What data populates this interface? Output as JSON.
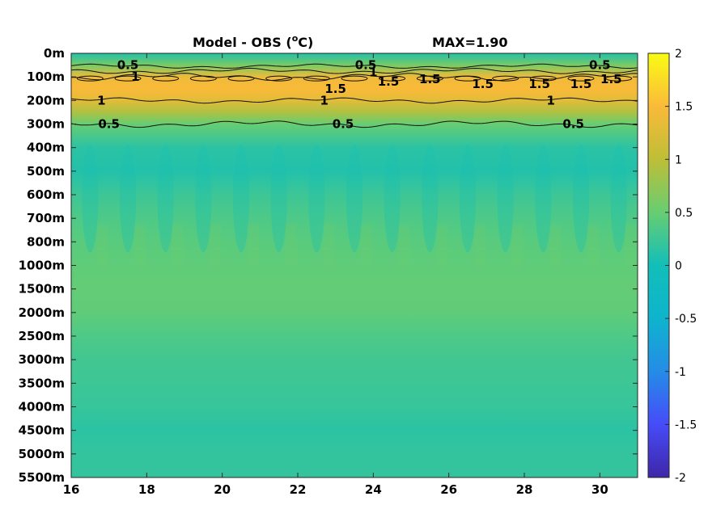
{
  "chart_data": {
    "type": "heatmap",
    "title": "Model - OBS (",
    "title_unit_sup": "o",
    "title_unit_end": "C)",
    "max_label": "MAX=1.90",
    "colormap": "parula",
    "xlim": [
      16,
      31
    ],
    "x_ticks": [
      16,
      18,
      20,
      22,
      24,
      26,
      28,
      30
    ],
    "x_tick_labels": [
      "16",
      "18",
      "20",
      "22",
      "24",
      "26",
      "28",
      "30"
    ],
    "y_tick_labels": [
      "0m",
      "100m",
      "200m",
      "300m",
      "400m",
      "500m",
      "600m",
      "700m",
      "800m",
      "1000m",
      "1500m",
      "2000m",
      "2500m",
      "3000m",
      "3500m",
      "4000m",
      "4500m",
      "5000m",
      "5500m"
    ],
    "clim": [
      -2,
      2
    ],
    "colorbar_ticks": [
      2,
      1.5,
      1,
      0.5,
      0,
      -0.5,
      -1,
      -1.5,
      -2
    ],
    "colorbar_tick_labels": [
      "2",
      "1.5",
      "1",
      "0.5",
      "0",
      "-0.5",
      "-1",
      "-1.5",
      "-2"
    ],
    "depth_profile": [
      {
        "depth": "0m",
        "value": 0.1
      },
      {
        "depth": "50m",
        "value": 0.6
      },
      {
        "depth": "100m",
        "value": 1.4
      },
      {
        "depth": "150m",
        "value": 1.5
      },
      {
        "depth": "200m",
        "value": 1.3
      },
      {
        "depth": "250m",
        "value": 0.9
      },
      {
        "depth": "300m",
        "value": 0.5
      },
      {
        "depth": "400m",
        "value": 0.15
      },
      {
        "depth": "500m",
        "value": 0.1
      },
      {
        "depth": "600m",
        "value": 0.25
      },
      {
        "depth": "700m",
        "value": 0.35
      },
      {
        "depth": "800m",
        "value": 0.42
      },
      {
        "depth": "1000m",
        "value": 0.45
      },
      {
        "depth": "1500m",
        "value": 0.48
      },
      {
        "depth": "2000m",
        "value": 0.45
      },
      {
        "depth": "2500m",
        "value": 0.35
      },
      {
        "depth": "3000m",
        "value": 0.28
      },
      {
        "depth": "3500m",
        "value": 0.25
      },
      {
        "depth": "4000m",
        "value": 0.22
      },
      {
        "depth": "4500m",
        "value": 0.15
      },
      {
        "depth": "5000m",
        "value": 0.2
      },
      {
        "depth": "5500m",
        "value": 0.2
      }
    ],
    "contour_labels": [
      {
        "text": "0.5",
        "x": 17.5,
        "depth": "50m"
      },
      {
        "text": "1",
        "x": 17.7,
        "depth": "100m"
      },
      {
        "text": "1",
        "x": 16.8,
        "depth": "200m"
      },
      {
        "text": "0.5",
        "x": 17.0,
        "depth": "300m"
      },
      {
        "text": "0.5",
        "x": 23.8,
        "depth": "50m"
      },
      {
        "text": "1",
        "x": 24.0,
        "depth": "80m"
      },
      {
        "text": "1.5",
        "x": 23.0,
        "depth": "150m"
      },
      {
        "text": "1",
        "x": 22.7,
        "depth": "200m"
      },
      {
        "text": "0.5",
        "x": 23.2,
        "depth": "300m"
      },
      {
        "text": "1.5",
        "x": 24.4,
        "depth": "120m"
      },
      {
        "text": "1.5",
        "x": 25.5,
        "depth": "110m"
      },
      {
        "text": "1.5",
        "x": 26.9,
        "depth": "130m"
      },
      {
        "text": "1.5",
        "x": 28.4,
        "depth": "130m"
      },
      {
        "text": "1",
        "x": 28.7,
        "depth": "200m"
      },
      {
        "text": "0.5",
        "x": 29.3,
        "depth": "300m"
      },
      {
        "text": "1.5",
        "x": 29.5,
        "depth": "130m"
      },
      {
        "text": "0.5",
        "x": 30.0,
        "depth": "50m"
      },
      {
        "text": "1.5",
        "x": 30.3,
        "depth": "110m"
      }
    ]
  }
}
